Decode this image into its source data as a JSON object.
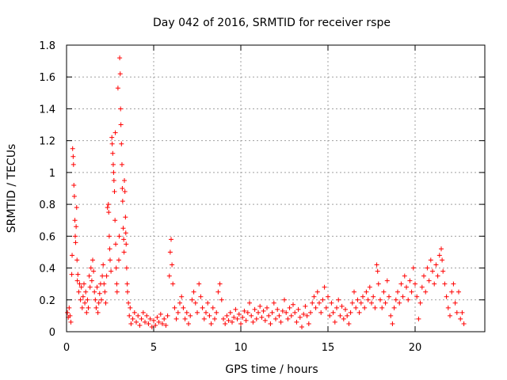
{
  "chart_data": {
    "type": "scatter",
    "title": "Day 042 of 2016, SRMTID for receiver rspe",
    "xlabel": "GPS time / hours",
    "ylabel": "SRMTID / TECUs",
    "xlim": [
      0,
      24
    ],
    "ylim": [
      0,
      1.8
    ],
    "xticks": [
      0,
      5,
      10,
      15,
      20
    ],
    "xtick_labels": [
      "0",
      "5",
      "10",
      "15",
      "20"
    ],
    "yticks": [
      0,
      0.2,
      0.4,
      0.6,
      0.8,
      1,
      1.2,
      1.4,
      1.6,
      1.8
    ],
    "ytick_labels": [
      "0",
      "0.2",
      "0.4",
      "0.6",
      "0.8",
      "1",
      "1.2",
      "1.4",
      "1.6",
      "1.8"
    ],
    "grid": true,
    "marker": "+",
    "series": [
      {
        "name": "SRMTID",
        "color": "#ff0000",
        "points": [
          [
            0.05,
            0.12
          ],
          [
            0.1,
            0.09
          ],
          [
            0.15,
            0.15
          ],
          [
            0.2,
            0.1
          ],
          [
            0.25,
            0.06
          ],
          [
            0.3,
            0.36
          ],
          [
            0.32,
            0.48
          ],
          [
            0.35,
            1.15
          ],
          [
            0.38,
            1.1
          ],
          [
            0.4,
            1.05
          ],
          [
            0.42,
            0.92
          ],
          [
            0.45,
            0.85
          ],
          [
            0.48,
            0.7
          ],
          [
            0.5,
            0.6
          ],
          [
            0.52,
            0.56
          ],
          [
            0.55,
            0.66
          ],
          [
            0.58,
            0.78
          ],
          [
            0.6,
            0.45
          ],
          [
            0.62,
            0.32
          ],
          [
            0.65,
            0.36
          ],
          [
            0.7,
            0.25
          ],
          [
            0.75,
            0.3
          ],
          [
            0.8,
            0.2
          ],
          [
            0.85,
            0.28
          ],
          [
            0.9,
            0.15
          ],
          [
            0.95,
            0.22
          ],
          [
            1.0,
            0.3
          ],
          [
            1.05,
            0.18
          ],
          [
            1.1,
            0.25
          ],
          [
            1.15,
            0.12
          ],
          [
            1.2,
            0.2
          ],
          [
            1.25,
            0.15
          ],
          [
            1.3,
            0.35
          ],
          [
            1.35,
            0.28
          ],
          [
            1.4,
            0.4
          ],
          [
            1.45,
            0.32
          ],
          [
            1.5,
            0.45
          ],
          [
            1.55,
            0.38
          ],
          [
            1.6,
            0.25
          ],
          [
            1.65,
            0.2
          ],
          [
            1.7,
            0.15
          ],
          [
            1.75,
            0.28
          ],
          [
            1.8,
            0.12
          ],
          [
            1.85,
            0.18
          ],
          [
            1.9,
            0.24
          ],
          [
            1.95,
            0.3
          ],
          [
            2.0,
            0.2
          ],
          [
            2.05,
            0.35
          ],
          [
            2.1,
            0.42
          ],
          [
            2.15,
            0.3
          ],
          [
            2.2,
            0.25
          ],
          [
            2.25,
            0.18
          ],
          [
            2.3,
            0.35
          ],
          [
            2.35,
            0.78
          ],
          [
            2.4,
            0.8
          ],
          [
            2.42,
            0.75
          ],
          [
            2.45,
            0.6
          ],
          [
            2.48,
            0.52
          ],
          [
            2.5,
            0.45
          ],
          [
            2.55,
            0.38
          ],
          [
            2.6,
            1.22
          ],
          [
            2.62,
            1.18
          ],
          [
            2.65,
            1.12
          ],
          [
            2.68,
            1.05
          ],
          [
            2.7,
            1.0
          ],
          [
            2.72,
            0.95
          ],
          [
            2.75,
            0.88
          ],
          [
            2.78,
            0.7
          ],
          [
            2.8,
            1.25
          ],
          [
            2.82,
            0.55
          ],
          [
            2.85,
            0.4
          ],
          [
            2.88,
            0.3
          ],
          [
            2.9,
            0.25
          ],
          [
            2.95,
            1.53
          ],
          [
            3.0,
            0.45
          ],
          [
            3.02,
            0.6
          ],
          [
            3.05,
            1.72
          ],
          [
            3.08,
            1.62
          ],
          [
            3.1,
            1.4
          ],
          [
            3.12,
            1.3
          ],
          [
            3.15,
            1.18
          ],
          [
            3.18,
            1.05
          ],
          [
            3.2,
            0.9
          ],
          [
            3.22,
            0.82
          ],
          [
            3.25,
            0.65
          ],
          [
            3.28,
            0.58
          ],
          [
            3.3,
            0.5
          ],
          [
            3.32,
            0.95
          ],
          [
            3.35,
            0.88
          ],
          [
            3.38,
            0.72
          ],
          [
            3.4,
            0.62
          ],
          [
            3.42,
            0.55
          ],
          [
            3.45,
            0.4
          ],
          [
            3.48,
            0.3
          ],
          [
            3.5,
            0.25
          ],
          [
            3.55,
            0.18
          ],
          [
            3.6,
            0.1
          ],
          [
            3.65,
            0.15
          ],
          [
            3.7,
            0.05
          ],
          [
            3.8,
            0.08
          ],
          [
            3.9,
            0.12
          ],
          [
            4.0,
            0.06
          ],
          [
            4.1,
            0.1
          ],
          [
            4.2,
            0.04
          ],
          [
            4.3,
            0.08
          ],
          [
            4.4,
            0.12
          ],
          [
            4.5,
            0.06
          ],
          [
            4.6,
            0.1
          ],
          [
            4.7,
            0.05
          ],
          [
            4.8,
            0.08
          ],
          [
            4.9,
            0.03
          ],
          [
            5.0,
            0.07
          ],
          [
            5.1,
            0.04
          ],
          [
            5.2,
            0.09
          ],
          [
            5.3,
            0.06
          ],
          [
            5.4,
            0.11
          ],
          [
            5.5,
            0.05
          ],
          [
            5.6,
            0.08
          ],
          [
            5.7,
            0.04
          ],
          [
            5.8,
            0.1
          ],
          [
            5.9,
            0.35
          ],
          [
            5.95,
            0.5
          ],
          [
            6.0,
            0.58
          ],
          [
            6.05,
            0.42
          ],
          [
            6.1,
            0.3
          ],
          [
            6.2,
            0.15
          ],
          [
            6.3,
            0.08
          ],
          [
            6.4,
            0.12
          ],
          [
            6.5,
            0.18
          ],
          [
            6.6,
            0.22
          ],
          [
            6.7,
            0.15
          ],
          [
            6.8,
            0.08
          ],
          [
            6.9,
            0.12
          ],
          [
            7.0,
            0.05
          ],
          [
            7.1,
            0.1
          ],
          [
            7.2,
            0.2
          ],
          [
            7.3,
            0.25
          ],
          [
            7.4,
            0.18
          ],
          [
            7.5,
            0.12
          ],
          [
            7.6,
            0.3
          ],
          [
            7.7,
            0.22
          ],
          [
            7.8,
            0.15
          ],
          [
            7.9,
            0.08
          ],
          [
            8.0,
            0.12
          ],
          [
            8.1,
            0.18
          ],
          [
            8.2,
            0.1
          ],
          [
            8.3,
            0.05
          ],
          [
            8.4,
            0.15
          ],
          [
            8.5,
            0.08
          ],
          [
            8.6,
            0.12
          ],
          [
            8.7,
            0.25
          ],
          [
            8.8,
            0.3
          ],
          [
            8.9,
            0.2
          ],
          [
            9.0,
            0.08
          ],
          [
            9.1,
            0.05
          ],
          [
            9.2,
            0.1
          ],
          [
            9.3,
            0.07
          ],
          [
            9.4,
            0.12
          ],
          [
            9.5,
            0.06
          ],
          [
            9.6,
            0.09
          ],
          [
            9.7,
            0.14
          ],
          [
            9.8,
            0.08
          ],
          [
            9.9,
            0.11
          ],
          [
            10.0,
            0.05
          ],
          [
            10.1,
            0.09
          ],
          [
            10.2,
            0.13
          ],
          [
            10.3,
            0.07
          ],
          [
            10.4,
            0.12
          ],
          [
            10.5,
            0.18
          ],
          [
            10.6,
            0.1
          ],
          [
            10.7,
            0.06
          ],
          [
            10.8,
            0.14
          ],
          [
            10.9,
            0.08
          ],
          [
            11.0,
            0.12
          ],
          [
            11.1,
            0.16
          ],
          [
            11.2,
            0.09
          ],
          [
            11.3,
            0.13
          ],
          [
            11.4,
            0.07
          ],
          [
            11.5,
            0.15
          ],
          [
            11.6,
            0.1
          ],
          [
            11.7,
            0.05
          ],
          [
            11.8,
            0.12
          ],
          [
            11.9,
            0.18
          ],
          [
            12.0,
            0.08
          ],
          [
            12.1,
            0.14
          ],
          [
            12.2,
            0.1
          ],
          [
            12.3,
            0.06
          ],
          [
            12.4,
            0.13
          ],
          [
            12.5,
            0.2
          ],
          [
            12.6,
            0.12
          ],
          [
            12.7,
            0.08
          ],
          [
            12.8,
            0.15
          ],
          [
            12.9,
            0.1
          ],
          [
            13.0,
            0.17
          ],
          [
            13.1,
            0.12
          ],
          [
            13.2,
            0.06
          ],
          [
            13.3,
            0.14
          ],
          [
            13.4,
            0.09
          ],
          [
            13.5,
            0.03
          ],
          [
            13.6,
            0.11
          ],
          [
            13.7,
            0.16
          ],
          [
            13.8,
            0.1
          ],
          [
            13.9,
            0.05
          ],
          [
            14.0,
            0.12
          ],
          [
            14.1,
            0.18
          ],
          [
            14.2,
            0.22
          ],
          [
            14.3,
            0.15
          ],
          [
            14.4,
            0.25
          ],
          [
            14.5,
            0.18
          ],
          [
            14.6,
            0.12
          ],
          [
            14.7,
            0.2
          ],
          [
            14.8,
            0.28
          ],
          [
            14.9,
            0.15
          ],
          [
            15.0,
            0.22
          ],
          [
            15.1,
            0.1
          ],
          [
            15.2,
            0.18
          ],
          [
            15.3,
            0.12
          ],
          [
            15.4,
            0.06
          ],
          [
            15.5,
            0.15
          ],
          [
            15.6,
            0.2
          ],
          [
            15.7,
            0.1
          ],
          [
            15.8,
            0.16
          ],
          [
            15.9,
            0.08
          ],
          [
            16.0,
            0.14
          ],
          [
            16.1,
            0.1
          ],
          [
            16.2,
            0.05
          ],
          [
            16.3,
            0.12
          ],
          [
            16.4,
            0.18
          ],
          [
            16.5,
            0.25
          ],
          [
            16.6,
            0.15
          ],
          [
            16.7,
            0.2
          ],
          [
            16.8,
            0.12
          ],
          [
            16.9,
            0.18
          ],
          [
            17.0,
            0.22
          ],
          [
            17.1,
            0.15
          ],
          [
            17.2,
            0.25
          ],
          [
            17.3,
            0.2
          ],
          [
            17.4,
            0.28
          ],
          [
            17.5,
            0.18
          ],
          [
            17.6,
            0.22
          ],
          [
            17.7,
            0.15
          ],
          [
            17.8,
            0.42
          ],
          [
            17.85,
            0.38
          ],
          [
            17.9,
            0.3
          ],
          [
            18.0,
            0.2
          ],
          [
            18.1,
            0.15
          ],
          [
            18.2,
            0.25
          ],
          [
            18.3,
            0.18
          ],
          [
            18.4,
            0.32
          ],
          [
            18.5,
            0.22
          ],
          [
            18.6,
            0.1
          ],
          [
            18.7,
            0.05
          ],
          [
            18.8,
            0.15
          ],
          [
            18.9,
            0.2
          ],
          [
            19.0,
            0.25
          ],
          [
            19.1,
            0.18
          ],
          [
            19.2,
            0.3
          ],
          [
            19.3,
            0.22
          ],
          [
            19.4,
            0.35
          ],
          [
            19.5,
            0.28
          ],
          [
            19.6,
            0.2
          ],
          [
            19.7,
            0.32
          ],
          [
            19.8,
            0.25
          ],
          [
            19.9,
            0.4
          ],
          [
            20.0,
            0.3
          ],
          [
            20.1,
            0.22
          ],
          [
            20.2,
            0.08
          ],
          [
            20.3,
            0.18
          ],
          [
            20.4,
            0.28
          ],
          [
            20.5,
            0.35
          ],
          [
            20.6,
            0.25
          ],
          [
            20.7,
            0.4
          ],
          [
            20.8,
            0.32
          ],
          [
            20.9,
            0.45
          ],
          [
            21.0,
            0.38
          ],
          [
            21.1,
            0.3
          ],
          [
            21.2,
            0.42
          ],
          [
            21.3,
            0.35
          ],
          [
            21.4,
            0.48
          ],
          [
            21.5,
            0.52
          ],
          [
            21.55,
            0.45
          ],
          [
            21.6,
            0.38
          ],
          [
            21.7,
            0.3
          ],
          [
            21.8,
            0.22
          ],
          [
            21.9,
            0.15
          ],
          [
            22.0,
            0.1
          ],
          [
            22.1,
            0.25
          ],
          [
            22.2,
            0.3
          ],
          [
            22.3,
            0.18
          ],
          [
            22.4,
            0.12
          ],
          [
            22.5,
            0.25
          ],
          [
            22.6,
            0.08
          ],
          [
            22.7,
            0.12
          ],
          [
            22.8,
            0.05
          ]
        ]
      }
    ]
  }
}
